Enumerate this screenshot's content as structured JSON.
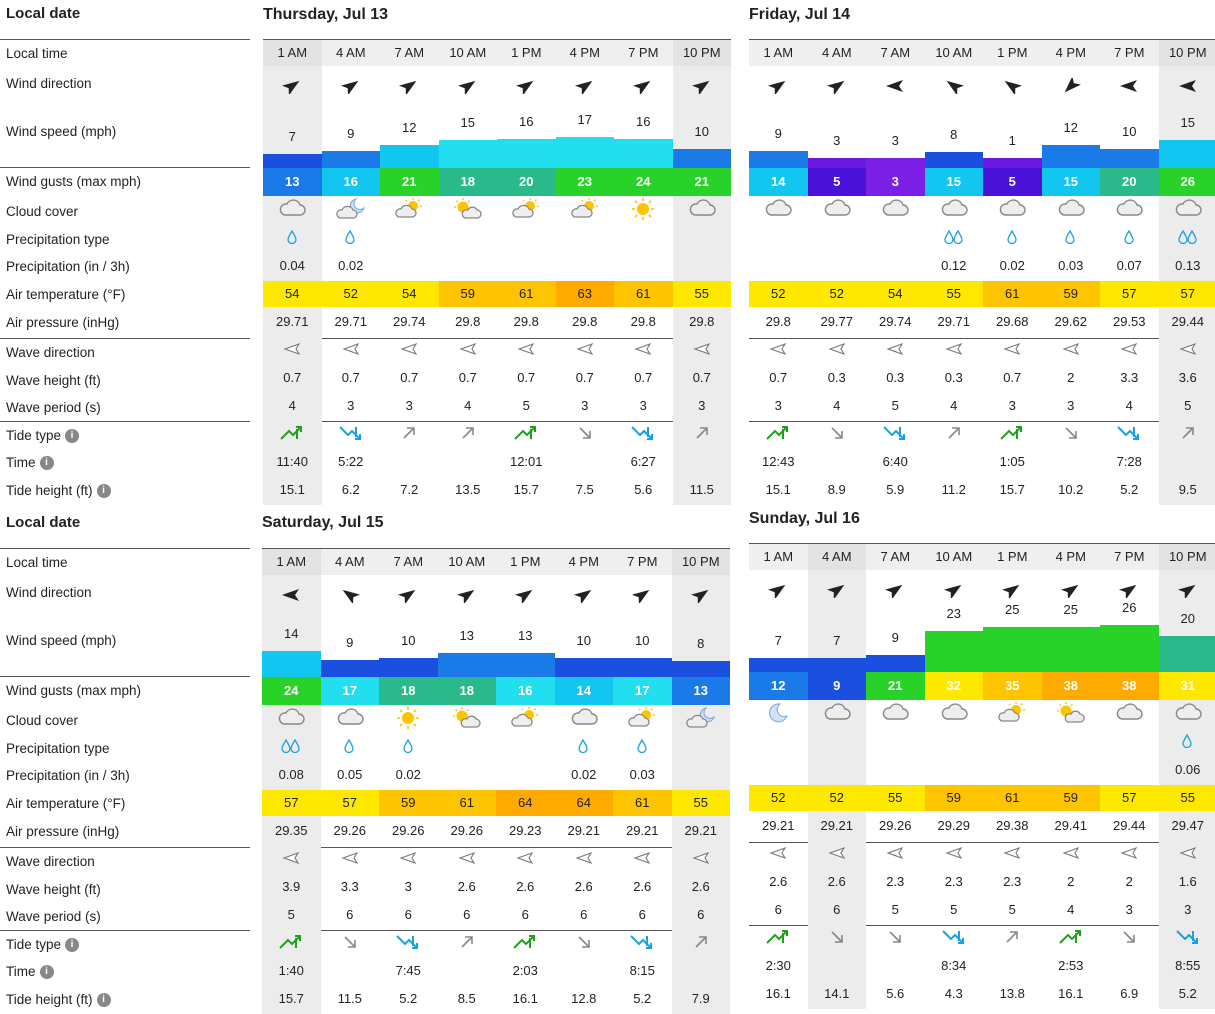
{
  "labels": {
    "local_date": "Local date",
    "local_time": "Local time",
    "wind_direction": "Wind direction",
    "wind_speed": "Wind speed (mph)",
    "wind_gusts": "Wind gusts (max mph)",
    "cloud_cover": "Cloud cover",
    "precip_type": "Precipitation type",
    "precip": "Precipitation (in / 3h)",
    "air_temp": "Air temperature (°F)",
    "air_pressure": "Air pressure (inHg)",
    "wave_direction": "Wave direction",
    "wave_height": "Wave height (ft)",
    "wave_period": "Wave period (s)",
    "tide_type": "Tide type",
    "time": "Time",
    "tide_height": "Tide height (ft)"
  },
  "colors": {
    "wind_blue_dark": "#1a4fe0",
    "wind_blue": "#1a7ae8",
    "wind_cyan": "#12c6f0",
    "wind_cyan_light": "#22dff0",
    "wind_green": "#28d228",
    "wind_teal": "#2ab98a",
    "wind_purple": "#6a1ae0",
    "wind_purple2": "#7b1fe6",
    "temp_yellow": "#ffe800",
    "temp_amber": "#ffc400",
    "temp_orange": "#ffaa00",
    "tide_rise": "#1ea01e",
    "tide_fall": "#1aa0e0"
  },
  "times": [
    "1 AM",
    "4 AM",
    "7 AM",
    "10 AM",
    "1 PM",
    "4 PM",
    "7 PM",
    "10 PM"
  ],
  "days": [
    {
      "title": "Thursday, Jul 13",
      "wind_dir": [
        "↗",
        "↗",
        "↗",
        "↗",
        "↗",
        "↗",
        "↗",
        "↗"
      ],
      "wind_speed": [
        "7",
        "9",
        "12",
        "15",
        "16",
        "17",
        "16",
        "10"
      ],
      "wind_speed_value": [
        7,
        9,
        12,
        15,
        16,
        17,
        16,
        10
      ],
      "wind_speed_colors": [
        "#1a4fe0",
        "#1a7ae8",
        "#12c6f0",
        "#22dff0",
        "#22dff0",
        "#22dff0",
        "#22dff0",
        "#1a7ae8"
      ],
      "gusts": [
        "13",
        "16",
        "21",
        "18",
        "20",
        "23",
        "24",
        "21"
      ],
      "gust_colors": [
        "#1a7ae8",
        "#12c6f0",
        "#28d228",
        "#2ab98a",
        "#2ab98a",
        "#28d228",
        "#28d228",
        "#28d228"
      ],
      "cloud": [
        "cloud-icon",
        "night-cloud-icon",
        "partly-sunny-icon",
        "sun-cloud-icon",
        "partly-sunny-icon",
        "partly-sunny-icon",
        "sun-icon",
        "cloud-icon"
      ],
      "precip_type": [
        "drop",
        "drop",
        "",
        "",
        "",
        "",
        "",
        ""
      ],
      "precip": [
        "0.04",
        "0.02",
        "",
        "",
        "",
        "",
        "",
        ""
      ],
      "temp": [
        "54",
        "52",
        "54",
        "59",
        "61",
        "63",
        "61",
        "55"
      ],
      "temp_colors": [
        "#ffe800",
        "#ffe800",
        "#ffe800",
        "#ffc400",
        "#ffc400",
        "#ffaa00",
        "#ffc400",
        "#ffe800"
      ],
      "pressure": [
        "29.71",
        "29.71",
        "29.74",
        "29.8",
        "29.8",
        "29.8",
        "29.8",
        "29.8"
      ],
      "wave_dir": [
        "◁",
        "◁",
        "◁",
        "◁",
        "◁",
        "◁",
        "◁",
        "◁"
      ],
      "wave_height": [
        "0.7",
        "0.7",
        "0.7",
        "0.7",
        "0.7",
        "0.7",
        "0.7",
        "0.7"
      ],
      "wave_period": [
        "4",
        "3",
        "3",
        "4",
        "5",
        "3",
        "3",
        "3"
      ],
      "tide_type": [
        "rise-high",
        "fall-low",
        "up",
        "up",
        "rise-high",
        "down",
        "fall-low",
        "up"
      ],
      "tide_time": [
        "11:40",
        "5:22",
        "",
        "",
        "12:01",
        "",
        "6:27",
        ""
      ],
      "tide_height": [
        "15.1",
        "6.2",
        "7.2",
        "13.5",
        "15.7",
        "7.5",
        "5.6",
        "11.5"
      ]
    },
    {
      "title": "Friday, Jul 14",
      "wind_dir": [
        "↗",
        "↗",
        "←",
        "↖",
        "↖",
        "↙",
        "←",
        "←"
      ],
      "wind_speed": [
        "9",
        "3",
        "3",
        "8",
        "1",
        "12",
        "10",
        "15"
      ],
      "wind_speed_value": [
        9,
        3,
        3,
        8,
        1,
        12,
        10,
        15
      ],
      "wind_speed_colors": [
        "#1a7ae8",
        "#6a1ae0",
        "#7b1fe6",
        "#1a4fe0",
        "#6a1ae0",
        "#1a7ae8",
        "#1a7ae8",
        "#12c6f0"
      ],
      "gusts": [
        "14",
        "5",
        "3",
        "15",
        "5",
        "15",
        "20",
        "26"
      ],
      "gust_colors": [
        "#12c6f0",
        "#4a12d8",
        "#7b1fe6",
        "#12c6f0",
        "#4a12d8",
        "#12c6f0",
        "#2ab98a",
        "#28d228"
      ],
      "cloud": [
        "cloud-icon",
        "cloud-icon",
        "cloud-icon",
        "rain-cloud-icon",
        "rain-cloud-icon",
        "rain-cloud-icon",
        "rain-cloud-icon",
        "rain-cloud-icon"
      ],
      "precip_type": [
        "",
        "",
        "",
        "drops",
        "drop",
        "drop",
        "drop",
        "drops"
      ],
      "precip": [
        "",
        "",
        "",
        "0.12",
        "0.02",
        "0.03",
        "0.07",
        "0.13"
      ],
      "temp": [
        "52",
        "52",
        "54",
        "55",
        "61",
        "59",
        "57",
        "57"
      ],
      "temp_colors": [
        "#ffe800",
        "#ffe800",
        "#ffe800",
        "#ffe800",
        "#ffc400",
        "#ffc400",
        "#ffe800",
        "#ffe800"
      ],
      "pressure": [
        "29.8",
        "29.77",
        "29.74",
        "29.71",
        "29.68",
        "29.62",
        "29.53",
        "29.44"
      ],
      "wave_dir": [
        "◁",
        "◁",
        "◁",
        "◁",
        "◁",
        "◁",
        "◁",
        "◁"
      ],
      "wave_height": [
        "0.7",
        "0.3",
        "0.3",
        "0.3",
        "0.7",
        "2",
        "3.3",
        "3.6"
      ],
      "wave_period": [
        "3",
        "4",
        "5",
        "4",
        "3",
        "3",
        "4",
        "5"
      ],
      "tide_type": [
        "rise-high",
        "down",
        "fall-low",
        "up",
        "rise-high",
        "down",
        "fall-low",
        "up"
      ],
      "tide_time": [
        "12:43",
        "",
        "6:40",
        "",
        "1:05",
        "",
        "7:28",
        ""
      ],
      "tide_height": [
        "15.1",
        "8.9",
        "5.9",
        "11.2",
        "15.7",
        "10.2",
        "5.2",
        "9.5"
      ]
    },
    {
      "title": "Saturday, Jul 15",
      "wind_dir": [
        "←",
        "↖",
        "↗",
        "↗",
        "↗",
        "↗",
        "↗",
        "↗"
      ],
      "wind_speed": [
        "14",
        "9",
        "10",
        "13",
        "13",
        "10",
        "10",
        "8"
      ],
      "wind_speed_value": [
        14,
        9,
        10,
        13,
        13,
        10,
        10,
        8
      ],
      "wind_speed_colors": [
        "#12c6f0",
        "#1a4fe0",
        "#1a4fe0",
        "#1a7ae8",
        "#1a7ae8",
        "#1a4fe0",
        "#1a4fe0",
        "#1a4fe0"
      ],
      "gusts": [
        "24",
        "17",
        "18",
        "18",
        "16",
        "14",
        "17",
        "13"
      ],
      "gust_colors": [
        "#28d228",
        "#22dff0",
        "#2ab98a",
        "#2ab98a",
        "#22dff0",
        "#12c6f0",
        "#22dff0",
        "#1a7ae8"
      ],
      "cloud": [
        "cloud-icon",
        "rain-cloud-icon",
        "sun-icon",
        "sun-cloud-icon",
        "partly-sunny-icon",
        "cloud-icon",
        "partly-sunny-icon",
        "night-cloud-icon"
      ],
      "precip_type": [
        "drops",
        "drop",
        "drop",
        "",
        "",
        "drop",
        "drop",
        ""
      ],
      "precip": [
        "0.08",
        "0.05",
        "0.02",
        "",
        "",
        "0.02",
        "0.03",
        ""
      ],
      "temp": [
        "57",
        "57",
        "59",
        "61",
        "64",
        "64",
        "61",
        "55"
      ],
      "temp_colors": [
        "#ffe800",
        "#ffe800",
        "#ffc400",
        "#ffc400",
        "#ffaa00",
        "#ffaa00",
        "#ffc400",
        "#ffe800"
      ],
      "pressure": [
        "29.35",
        "29.26",
        "29.26",
        "29.26",
        "29.23",
        "29.21",
        "29.21",
        "29.21"
      ],
      "wave_dir": [
        "◁",
        "◁",
        "◁",
        "◁",
        "◁",
        "◁",
        "◁",
        "◁"
      ],
      "wave_height": [
        "3.9",
        "3.3",
        "3",
        "2.6",
        "2.6",
        "2.6",
        "2.6",
        "2.6"
      ],
      "wave_period": [
        "5",
        "6",
        "6",
        "6",
        "6",
        "6",
        "6",
        "6"
      ],
      "tide_type": [
        "rise-high",
        "down",
        "fall-low",
        "up",
        "rise-high",
        "down",
        "fall-low",
        "up"
      ],
      "tide_time": [
        "1:40",
        "",
        "7:45",
        "",
        "2:03",
        "",
        "8:15",
        ""
      ],
      "tide_height": [
        "15.7",
        "11.5",
        "5.2",
        "8.5",
        "16.1",
        "12.8",
        "5.2",
        "7.9"
      ]
    },
    {
      "title": "Sunday, Jul 16",
      "wind_dir": [
        "↗",
        "↗",
        "↗",
        "↗",
        "↗",
        "↗",
        "↗",
        "↗"
      ],
      "wind_speed": [
        "7",
        "7",
        "9",
        "23",
        "25",
        "25",
        "26",
        "20"
      ],
      "wind_speed_value": [
        7,
        7,
        9,
        23,
        25,
        25,
        26,
        20
      ],
      "wind_speed_colors": [
        "#1a4fe0",
        "#1a4fe0",
        "#1a4fe0",
        "#28d228",
        "#28d228",
        "#28d228",
        "#28d228",
        "#2ab98a"
      ],
      "gusts": [
        "12",
        "9",
        "21",
        "32",
        "35",
        "38",
        "38",
        "31"
      ],
      "gust_colors": [
        "#1a7ae8",
        "#1a4fe0",
        "#28d228",
        "#ffe800",
        "#ffc400",
        "#ffaa00",
        "#ffaa00",
        "#ffe800"
      ],
      "cloud": [
        "moon-icon",
        "cloud-icon",
        "cloud-icon",
        "cloud-icon",
        "partly-sunny-icon",
        "sun-cloud-icon",
        "cloud-icon",
        "rain-cloud-icon"
      ],
      "precip_type": [
        "",
        "",
        "",
        "",
        "",
        "",
        "",
        "drop"
      ],
      "precip": [
        "",
        "",
        "",
        "",
        "",
        "",
        "",
        "0.06"
      ],
      "temp": [
        "52",
        "52",
        "55",
        "59",
        "61",
        "59",
        "57",
        "55"
      ],
      "temp_colors": [
        "#ffe800",
        "#ffe800",
        "#ffe800",
        "#ffc400",
        "#ffc400",
        "#ffc400",
        "#ffe800",
        "#ffe800"
      ],
      "pressure": [
        "29.21",
        "29.21",
        "29.26",
        "29.29",
        "29.38",
        "29.41",
        "29.44",
        "29.47"
      ],
      "wave_dir": [
        "◁",
        "◁",
        "◁",
        "◁",
        "◁",
        "◁",
        "◁",
        "◁"
      ],
      "wave_height": [
        "2.6",
        "2.6",
        "2.3",
        "2.3",
        "2.3",
        "2",
        "2",
        "1.6"
      ],
      "wave_period": [
        "6",
        "6",
        "5",
        "5",
        "5",
        "4",
        "3",
        "3"
      ],
      "tide_type": [
        "rise-high",
        "down",
        "down",
        "fall-low",
        "up",
        "rise-high",
        "down",
        "fall-low"
      ],
      "tide_time": [
        "2:30",
        "",
        "",
        "8:34",
        "",
        "2:53",
        "",
        "8:55"
      ],
      "tide_height": [
        "16.1",
        "14.1",
        "5.6",
        "4.3",
        "13.8",
        "16.1",
        "6.9",
        "5.2"
      ]
    }
  ]
}
